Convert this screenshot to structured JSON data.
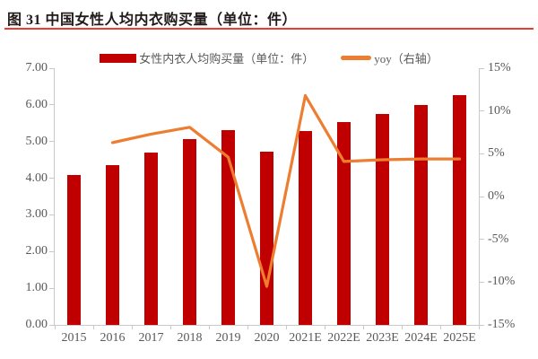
{
  "figure": {
    "title": "图 31 中国女性人均内衣购买量（单位：件）"
  },
  "legend": [
    {
      "label": "女性内衣人均购买量（单位：件）",
      "color": "#c00000",
      "marker": "bar-swatch"
    },
    {
      "label": "yoy（右轴）",
      "color": "#ed7d31",
      "marker": "line-swatch"
    }
  ],
  "chart_data": {
    "type": "bar",
    "title": "图 31 中国女性人均内衣购买量（单位：件）",
    "categories": [
      "2015",
      "2016",
      "2017",
      "2018",
      "2019",
      "2020",
      "2021E",
      "2022E",
      "2023E",
      "2024E",
      "2025E"
    ],
    "series": [
      {
        "name": "女性内衣人均购买量（单位：件）",
        "type": "bar",
        "axis": "left",
        "color": "#c00000",
        "values": [
          4.1,
          4.36,
          4.7,
          5.07,
          5.3,
          4.73,
          5.29,
          5.52,
          5.76,
          6.0,
          6.26
        ]
      },
      {
        "name": "yoy（右轴）",
        "type": "line",
        "axis": "right",
        "color": "#ed7d31",
        "values": [
          null,
          6.3,
          7.3,
          8.1,
          4.6,
          -10.5,
          11.8,
          4.1,
          4.3,
          4.4,
          4.4
        ]
      }
    ],
    "left_axis": {
      "min": 0,
      "max": 7,
      "step": 1,
      "tick_labels": [
        "0.00",
        "1.00",
        "2.00",
        "3.00",
        "4.00",
        "5.00",
        "6.00",
        "7.00"
      ]
    },
    "right_axis": {
      "min": -15,
      "max": 15,
      "step": 5,
      "unit": "%",
      "tick_labels": [
        "-15%",
        "-10%",
        "-5%",
        "0%",
        "5%",
        "10%",
        "15%"
      ]
    },
    "grid": false,
    "legend_position": "top"
  },
  "colors": {
    "bar": "#c00000",
    "line": "#ed7d31",
    "title_rule": "#ee3c33",
    "axis_text": "#595959",
    "axis_line": "#c9c9c9",
    "title_text": "#211a18",
    "background": "#ffffff"
  }
}
